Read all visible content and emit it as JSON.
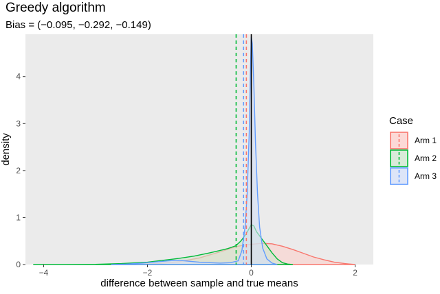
{
  "chart_data": {
    "type": "area",
    "title": "Greedy algorithm",
    "subtitle": "Bias = (−0.095, −0.292, −0.149)",
    "xlabel": "difference between sample and true means",
    "ylabel": "density",
    "xlim": [
      -4.35,
      2.35
    ],
    "ylim": [
      0,
      4.9
    ],
    "x_ticks": [
      -4,
      -2,
      0,
      2
    ],
    "y_ticks": [
      0,
      1,
      2,
      3,
      4
    ],
    "x_tick_labels": [
      "−4",
      "−2",
      "0",
      "2"
    ],
    "y_tick_labels": [
      "0",
      "1",
      "2",
      "3",
      "4"
    ],
    "background": "#ebebeb",
    "grid": false,
    "reference_line": {
      "x": 0,
      "color": "#000000"
    },
    "legend": {
      "title": "Case",
      "position": "right"
    },
    "series": [
      {
        "name": "Arm 1",
        "color": "#f8766d",
        "fill": "#fbd0cc",
        "bias": -0.095,
        "points": [
          [
            -2.6,
            0.0
          ],
          [
            -2.2,
            0.005
          ],
          [
            -1.8,
            0.02
          ],
          [
            -1.4,
            0.06
          ],
          [
            -1.0,
            0.14
          ],
          [
            -0.6,
            0.27
          ],
          [
            -0.3,
            0.38
          ],
          [
            -0.1,
            0.42
          ],
          [
            0.0,
            0.43
          ],
          [
            0.2,
            0.45
          ],
          [
            0.4,
            0.44
          ],
          [
            0.6,
            0.39
          ],
          [
            0.8,
            0.32
          ],
          [
            1.0,
            0.24
          ],
          [
            1.2,
            0.16
          ],
          [
            1.4,
            0.1
          ],
          [
            1.6,
            0.05
          ],
          [
            1.8,
            0.02
          ],
          [
            2.0,
            0.0
          ]
        ]
      },
      {
        "name": "Arm 2",
        "color": "#00ba38",
        "fill": "#cfe6cf",
        "bias": -0.292,
        "points": [
          [
            -4.2,
            0.0
          ],
          [
            -3.6,
            0.0
          ],
          [
            -3.0,
            0.005
          ],
          [
            -2.5,
            0.02
          ],
          [
            -2.0,
            0.05
          ],
          [
            -1.7,
            0.09
          ],
          [
            -1.4,
            0.13
          ],
          [
            -1.1,
            0.18
          ],
          [
            -0.8,
            0.25
          ],
          [
            -0.6,
            0.3
          ],
          [
            -0.45,
            0.34
          ],
          [
            -0.3,
            0.4
          ],
          [
            -0.2,
            0.5
          ],
          [
            -0.1,
            0.65
          ],
          [
            0.0,
            0.85
          ],
          [
            0.05,
            0.82
          ],
          [
            0.1,
            0.7
          ],
          [
            0.2,
            0.55
          ],
          [
            0.3,
            0.4
          ],
          [
            0.4,
            0.25
          ],
          [
            0.5,
            0.12
          ],
          [
            0.6,
            0.04
          ],
          [
            0.7,
            0.01
          ],
          [
            0.8,
            0.0
          ]
        ]
      },
      {
        "name": "Arm 3",
        "color": "#619cff",
        "fill": "#d4dff6",
        "bias": -0.149,
        "points": [
          [
            -2.7,
            0.0
          ],
          [
            -2.4,
            0.01
          ],
          [
            -2.1,
            0.03
          ],
          [
            -1.8,
            0.06
          ],
          [
            -1.6,
            0.08
          ],
          [
            -1.4,
            0.09
          ],
          [
            -1.2,
            0.07
          ],
          [
            -1.0,
            0.05
          ],
          [
            -0.8,
            0.04
          ],
          [
            -0.6,
            0.03
          ],
          [
            -0.4,
            0.04
          ],
          [
            -0.25,
            0.08
          ],
          [
            -0.18,
            0.3
          ],
          [
            -0.12,
            0.8
          ],
          [
            -0.08,
            1.5
          ],
          [
            -0.04,
            2.8
          ],
          [
            -0.02,
            4.0
          ],
          [
            0.0,
            4.85
          ],
          [
            0.02,
            4.7
          ],
          [
            0.05,
            3.8
          ],
          [
            0.08,
            2.6
          ],
          [
            0.12,
            1.5
          ],
          [
            0.16,
            0.8
          ],
          [
            0.22,
            0.35
          ],
          [
            0.3,
            0.12
          ],
          [
            0.4,
            0.03
          ],
          [
            0.5,
            0.0
          ]
        ]
      }
    ]
  }
}
